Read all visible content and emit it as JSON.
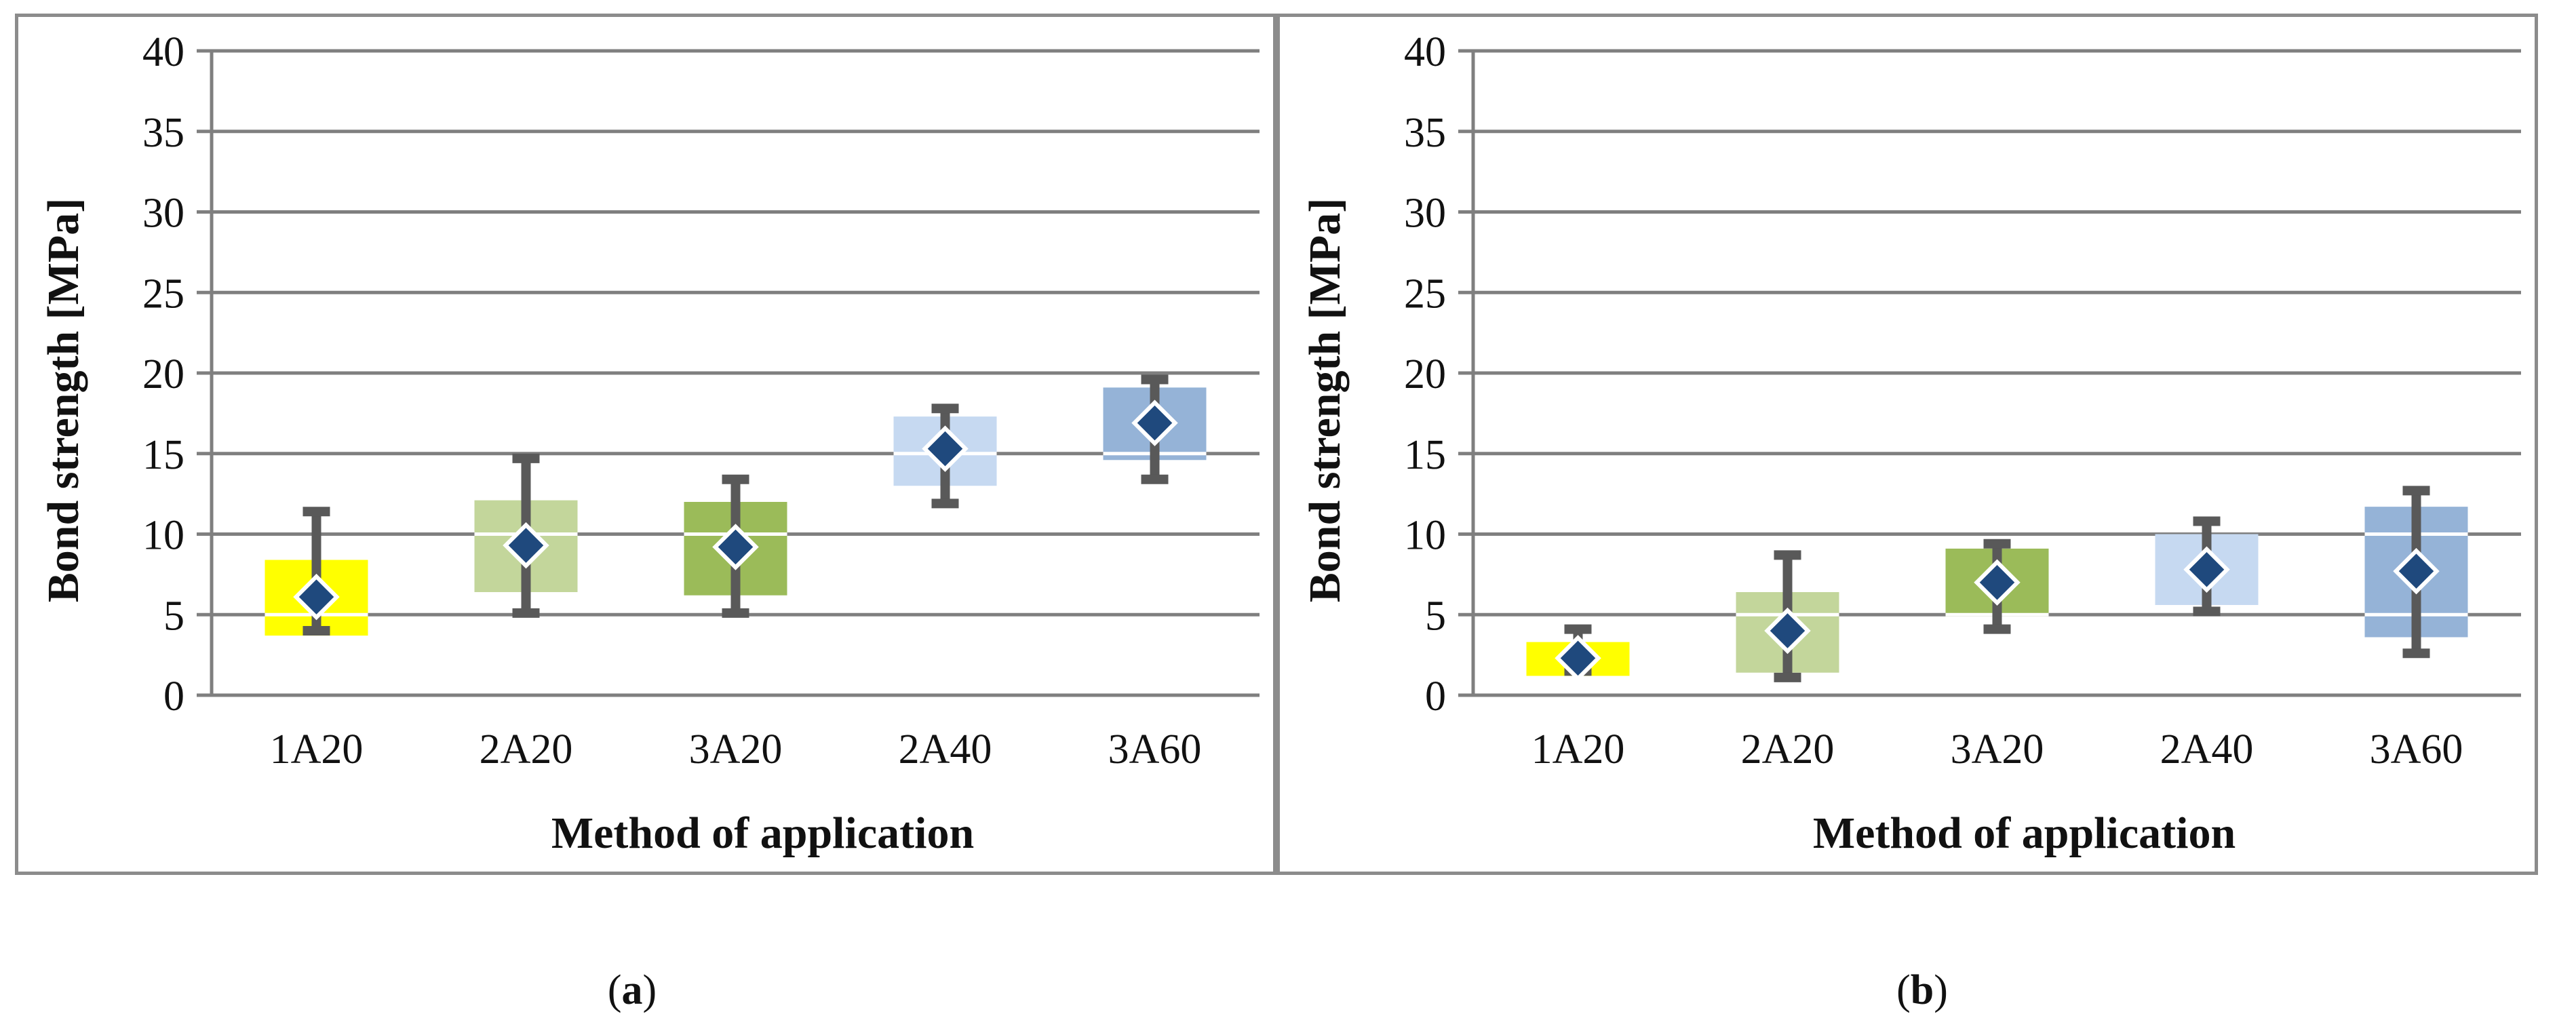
{
  "chart_data": [
    {
      "id": "a",
      "type": "box",
      "xlabel": "Method of application",
      "ylabel": "Bond strength [MPa]",
      "ylim": [
        0,
        40
      ],
      "yticks": [
        0,
        5,
        10,
        15,
        20,
        25,
        30,
        35,
        40
      ],
      "categories": [
        "1A20",
        "2A20",
        "3A20",
        "2A40",
        "3A60"
      ],
      "box_low": [
        3.7,
        6.4,
        6.2,
        13.0,
        14.6
      ],
      "box_high": [
        8.4,
        12.1,
        12.0,
        17.3,
        19.1
      ],
      "whisker_min": [
        4.0,
        5.1,
        5.1,
        11.9,
        13.4
      ],
      "whisker_max": [
        11.4,
        14.7,
        13.4,
        17.8,
        19.6
      ],
      "mean": [
        6.1,
        9.3,
        9.2,
        15.3,
        16.9
      ],
      "colors": [
        "#ffff00",
        "#c3d69b",
        "#9bbb59",
        "#c6d9f1",
        "#95b3d7"
      ],
      "gridline_color": "#7f7f7f",
      "whisker_color": "#595959",
      "marker_color": "#1f497d"
    },
    {
      "id": "b",
      "type": "box",
      "xlabel": "Method of application",
      "ylabel": "Bond strength [MPa]",
      "ylim": [
        0,
        40
      ],
      "yticks": [
        0,
        5,
        10,
        15,
        20,
        25,
        30,
        35,
        40
      ],
      "categories": [
        "1A20",
        "2A20",
        "3A20",
        "2A40",
        "3A60"
      ],
      "box_low": [
        1.2,
        1.4,
        4.9,
        5.6,
        3.6
      ],
      "box_high": [
        3.3,
        6.4,
        9.1,
        10.0,
        11.7
      ],
      "whisker_min": [
        1.5,
        1.1,
        4.1,
        5.2,
        2.6
      ],
      "whisker_max": [
        4.1,
        8.7,
        9.4,
        10.8,
        12.7
      ],
      "mean": [
        2.3,
        4.0,
        7.0,
        7.8,
        7.7
      ],
      "colors": [
        "#ffff00",
        "#c3d69b",
        "#9bbb59",
        "#c6d9f1",
        "#95b3d7"
      ],
      "gridline_color": "#7f7f7f",
      "whisker_color": "#595959",
      "marker_color": "#1f497d"
    }
  ],
  "subfigure_labels": [
    {
      "open": "(",
      "letter": "a",
      "close": ")"
    },
    {
      "open": "(",
      "letter": "b",
      "close": ")"
    }
  ]
}
